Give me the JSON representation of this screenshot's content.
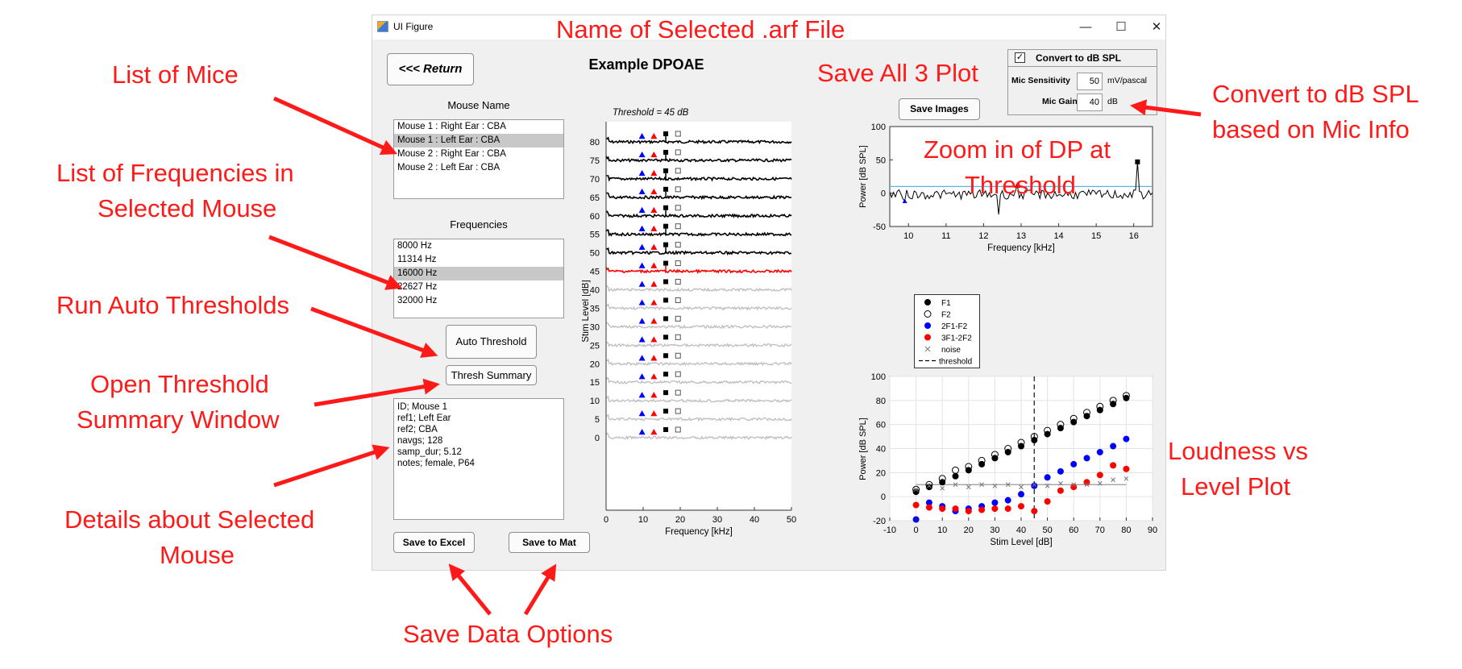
{
  "window": {
    "title": "UI Figure",
    "controls": {
      "minimize": "—",
      "maximize": "☐",
      "close": "✕"
    }
  },
  "return_button": "<<< Return",
  "figure_title": "Example DPOAE",
  "mouse_list": {
    "label": "Mouse Name",
    "items": [
      "Mouse 1 : Right Ear : CBA",
      "Mouse 1 : Left Ear : CBA",
      "Mouse 2 : Right Ear : CBA",
      "Mouse 2 : Left Ear : CBA"
    ],
    "selected_index": 1
  },
  "freq_list": {
    "label": "Frequencies",
    "items": [
      "8000 Hz",
      "11314 Hz",
      "16000 Hz",
      "22627 Hz",
      "32000 Hz"
    ],
    "selected_index": 2
  },
  "buttons": {
    "auto_threshold": "Auto Threshold",
    "thresh_summary": "Thresh Summary",
    "save_excel": "Save to Excel",
    "save_mat": "Save to Mat",
    "save_images": "Save Images"
  },
  "details": [
    "ID;  Mouse 1",
    "ref1;  Left Ear",
    "ref2;  CBA",
    "navgs;  128",
    "samp_dur;  5.12",
    "notes;  female, P64"
  ],
  "spl_panel": {
    "checkbox_label": "Convert to dB SPL",
    "checked": true,
    "check_glyph": "✓",
    "sensitivity_label": "Mic Sensitivity",
    "sensitivity_value": "50",
    "sensitivity_unit": "mV/pascal",
    "gain_label": "Mic Gain",
    "gain_value": "40",
    "gain_unit": "dB"
  },
  "annotations": {
    "list_mice": "List of Mice",
    "list_freqs": [
      "List of Frequencies in",
      "Selected Mouse"
    ],
    "run_auto": "Run Auto Thresholds",
    "open_summary": [
      "Open Threshold",
      "Summary Window"
    ],
    "details": [
      "Details about Selected",
      "Mouse"
    ],
    "save_data": "Save Data Options",
    "arf_name": "Name of Selected .arf File",
    "save_all": "Save All 3 Plot",
    "convert": [
      "Convert to dB SPL",
      "based on Mic Info"
    ],
    "zoom": [
      "Zoom in of DP at",
      "Threshold"
    ],
    "loudness": [
      "Loudness vs",
      "Level Plot"
    ]
  },
  "colors": {
    "annotation": "#ff1a1a",
    "f1": "#000000",
    "dp_blue": "#0000ff",
    "dp_red": "#ff0000",
    "above_threshold": "#000000",
    "threshold_trace": "#ff0000",
    "below_threshold": "#bdbdbd",
    "threshold_line": "#5ab4e5"
  },
  "chart_data": [
    {
      "type": "line",
      "subtitle": "Threshold = 45 dB",
      "xlabel": "Frequency [kHz]",
      "ylabel": "Stim Level [dB]",
      "xlim": [
        0,
        50
      ],
      "xticks": [
        0,
        10,
        20,
        30,
        40,
        50
      ],
      "levels": [
        80,
        75,
        70,
        65,
        60,
        55,
        50,
        45,
        40,
        35,
        30,
        25,
        20,
        15,
        10,
        5,
        0
      ],
      "threshold": 45,
      "markers_khz": {
        "2F1-F2": 9.7,
        "3F1-2F2": 12.9,
        "F1": 16.1,
        "F2": 19.4
      }
    },
    {
      "type": "line",
      "xlabel": "Frequency [kHz]",
      "ylabel": "Power [dB SPL]",
      "xlim": [
        9.5,
        16.5
      ],
      "ylim": [
        -50,
        100
      ],
      "xticks": [
        10,
        11,
        12,
        13,
        14,
        15,
        16
      ],
      "yticks": [
        -50,
        0,
        50,
        100
      ],
      "threshold_line": 10,
      "peaks": [
        {
          "name": "F1",
          "x": 16.1,
          "y": 47
        },
        {
          "name": "3F1-2F2",
          "x": 12.9,
          "y": 12
        },
        {
          "name": "2F1-F2",
          "x": 9.9,
          "y": -12
        }
      ]
    },
    {
      "type": "scatter",
      "legend": [
        "F1",
        "F2",
        "2F1-F2",
        "3F1-2F2",
        "noise",
        "threshold"
      ],
      "xlabel": "Stim Level [dB]",
      "ylabel": "Power [dB SPL]",
      "xlim": [
        -10,
        90
      ],
      "ylim": [
        -20,
        100
      ],
      "xticks": [
        -10,
        0,
        10,
        20,
        30,
        40,
        50,
        60,
        70,
        80,
        90
      ],
      "yticks": [
        -20,
        0,
        20,
        40,
        60,
        80,
        100
      ],
      "grid": true,
      "x": [
        0,
        5,
        10,
        15,
        20,
        25,
        30,
        35,
        40,
        45,
        50,
        55,
        60,
        65,
        70,
        75,
        80
      ],
      "threshold_x": 45,
      "series": [
        {
          "name": "F1",
          "values": [
            4,
            8,
            12,
            17,
            22,
            27,
            32,
            37,
            42,
            47,
            52,
            57,
            62,
            67,
            72,
            77,
            82
          ]
        },
        {
          "name": "F2",
          "values": [
            6,
            10,
            15,
            22,
            25,
            30,
            35,
            40,
            45,
            50,
            55,
            60,
            65,
            70,
            75,
            80,
            84
          ]
        },
        {
          "name": "2F1-F2",
          "values": [
            -19,
            -5,
            -8,
            -12,
            -10,
            -8,
            -5,
            -3,
            2,
            9,
            16,
            21,
            27,
            32,
            37,
            42,
            48
          ]
        },
        {
          "name": "3F1-2F2",
          "values": [
            -7,
            -9,
            -10,
            -10,
            -12,
            -11,
            -10,
            -10,
            -8,
            -12,
            -4,
            5,
            8,
            12,
            18,
            26,
            23
          ]
        },
        {
          "name": "noise",
          "values": [
            6,
            9,
            7,
            10,
            8,
            10,
            9,
            10,
            8,
            10,
            9,
            11,
            10,
            10,
            11,
            14,
            15
          ]
        }
      ]
    }
  ]
}
